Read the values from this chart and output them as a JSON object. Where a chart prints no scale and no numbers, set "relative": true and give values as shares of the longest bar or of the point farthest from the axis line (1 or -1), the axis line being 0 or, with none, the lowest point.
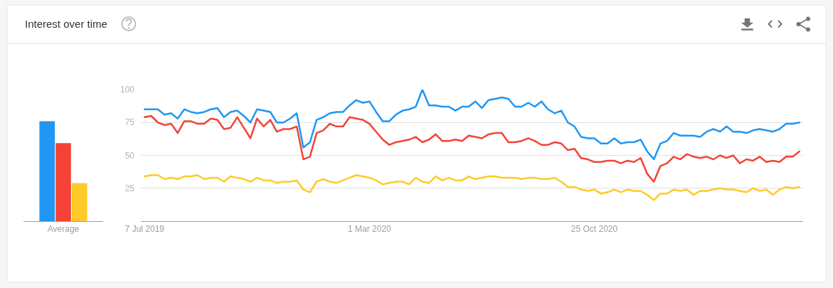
{
  "chart_data": [
    {
      "type": "bar",
      "title": "Interest over time",
      "categories": [
        "Average"
      ],
      "relative": true,
      "series": [
        {
          "color": "#2196f3",
          "values": [
            1
          ]
        },
        {
          "color": "#f44336",
          "values": [
            0.78
          ]
        },
        {
          "color": "#ffca28",
          "values": [
            0.38
          ]
        }
      ]
    },
    {
      "type": "line",
      "grid": "y",
      "xlim": [
        "2019-07-03",
        "2021-06-03"
      ],
      "ylim": [
        0,
        100
      ],
      "xticks": [
        {
          "value": "2019-07-07",
          "label": "7 Jul 2019"
        },
        {
          "value": "2020-03-01",
          "label": "1 Mar 2020"
        },
        {
          "value": "2020-10-25",
          "label": "25 Oct 2020"
        }
      ],
      "yticks": [
        25,
        50,
        75,
        100
      ],
      "x": [
        "2019-07-07",
        "2019-07-14",
        "2019-07-21",
        "2019-07-28",
        "2019-08-04",
        "2019-08-11",
        "2019-08-18",
        "2019-08-25",
        "2019-09-01",
        "2019-09-08",
        "2019-09-15",
        "2019-09-22",
        "2019-09-29",
        "2019-10-06",
        "2019-10-13",
        "2019-10-20",
        "2019-10-27",
        "2019-11-03",
        "2019-11-10",
        "2019-11-17",
        "2019-11-24",
        "2019-12-01",
        "2019-12-08",
        "2019-12-15",
        "2019-12-22",
        "2019-12-29",
        "2020-01-05",
        "2020-01-12",
        "2020-01-19",
        "2020-01-26",
        "2020-02-02",
        "2020-02-09",
        "2020-02-16",
        "2020-02-23",
        "2020-03-01",
        "2020-03-08",
        "2020-03-15",
        "2020-03-22",
        "2020-03-29",
        "2020-04-05",
        "2020-04-12",
        "2020-04-19",
        "2020-04-26",
        "2020-05-03",
        "2020-05-10",
        "2020-05-17",
        "2020-05-24",
        "2020-05-31",
        "2020-06-07",
        "2020-06-14",
        "2020-06-21",
        "2020-06-28",
        "2020-07-05",
        "2020-07-12",
        "2020-07-19",
        "2020-07-26",
        "2020-08-02",
        "2020-08-09",
        "2020-08-16",
        "2020-08-23",
        "2020-08-30",
        "2020-09-06",
        "2020-09-13",
        "2020-09-20",
        "2020-09-27",
        "2020-10-04",
        "2020-10-11",
        "2020-10-18",
        "2020-10-25",
        "2020-11-01",
        "2020-11-08",
        "2020-11-15",
        "2020-11-22",
        "2020-11-29",
        "2020-12-06",
        "2020-12-13",
        "2020-12-20",
        "2020-12-27",
        "2021-01-03",
        "2021-01-10",
        "2021-01-17",
        "2021-01-24",
        "2021-01-31",
        "2021-02-07",
        "2021-02-14",
        "2021-02-21",
        "2021-02-28",
        "2021-03-07",
        "2021-03-14",
        "2021-03-21",
        "2021-03-28",
        "2021-04-04",
        "2021-04-11",
        "2021-04-18",
        "2021-04-25",
        "2021-05-02",
        "2021-05-09",
        "2021-05-16",
        "2021-05-23",
        "2021-05-30"
      ],
      "series": [
        {
          "color": "#2196f3",
          "values": [
            85,
            85,
            85,
            81,
            82,
            78,
            85,
            83,
            82,
            83,
            85,
            86,
            79,
            83,
            84,
            80,
            75,
            85,
            84,
            83,
            75,
            75,
            78,
            82,
            56,
            60,
            77,
            79,
            82,
            83,
            83,
            88,
            92,
            90,
            91,
            83,
            76,
            76,
            81,
            84,
            85,
            87,
            100,
            88,
            88,
            87,
            87,
            84,
            87,
            87,
            91,
            86,
            92,
            93,
            94,
            93,
            87,
            87,
            90,
            87,
            91,
            85,
            82,
            84,
            75,
            72,
            64,
            63,
            63,
            59,
            59,
            63,
            59,
            60,
            60,
            62,
            53,
            47,
            59,
            61,
            67,
            65,
            65,
            65,
            64,
            68,
            70,
            68,
            72,
            68,
            68,
            67,
            69,
            70,
            69,
            68,
            70,
            74,
            74,
            75
          ]
        },
        {
          "color": "#f44336",
          "values": [
            79,
            80,
            75,
            73,
            74,
            67,
            76,
            76,
            74,
            74,
            78,
            77,
            70,
            71,
            79,
            71,
            63,
            78,
            72,
            77,
            68,
            70,
            70,
            72,
            47,
            49,
            67,
            69,
            74,
            72,
            72,
            79,
            78,
            77,
            74,
            68,
            62,
            58,
            60,
            61,
            62,
            64,
            60,
            62,
            66,
            61,
            61,
            62,
            61,
            65,
            64,
            63,
            66,
            67,
            67,
            60,
            60,
            61,
            63,
            61,
            58,
            58,
            60,
            59,
            54,
            55,
            48,
            47,
            45,
            45,
            46,
            46,
            44,
            46,
            45,
            48,
            36,
            30,
            42,
            44,
            49,
            47,
            51,
            49,
            48,
            49,
            47,
            50,
            48,
            50,
            44,
            47,
            46,
            49,
            45,
            46,
            45,
            49,
            49,
            53
          ]
        },
        {
          "color": "#ffca28",
          "values": [
            34,
            35,
            35,
            32,
            33,
            32,
            34,
            34,
            35,
            32,
            33,
            33,
            30,
            34,
            33,
            32,
            30,
            33,
            31,
            31,
            29,
            30,
            30,
            31,
            24,
            22,
            30,
            32,
            30,
            29,
            31,
            33,
            35,
            34,
            33,
            31,
            28,
            29,
            30,
            30,
            28,
            33,
            30,
            29,
            34,
            31,
            33,
            31,
            31,
            34,
            32,
            33,
            34,
            34,
            33,
            33,
            33,
            32,
            33,
            33,
            32,
            32,
            33,
            30,
            26,
            26,
            24,
            23,
            24,
            21,
            22,
            24,
            22,
            24,
            23,
            23,
            20,
            16,
            21,
            21,
            24,
            23,
            24,
            20,
            23,
            23,
            24,
            25,
            24,
            24,
            23,
            22,
            25,
            23,
            24,
            20,
            24,
            26,
            25,
            26
          ]
        }
      ]
    }
  ]
}
